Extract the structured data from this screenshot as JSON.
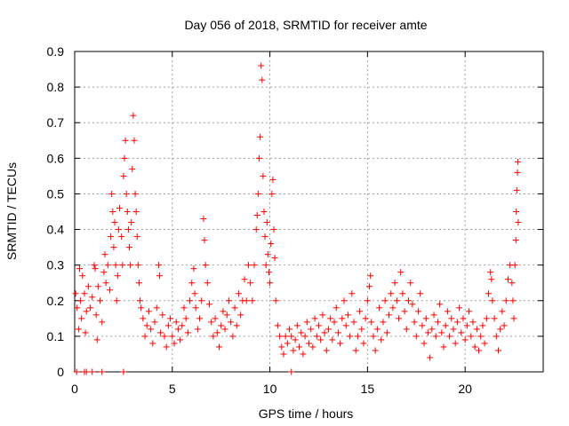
{
  "chart_data": {
    "type": "scatter",
    "title": "Day 056 of 2018, SRMTID for receiver amte",
    "xlabel": "GPS time / hours",
    "ylabel": "SRMTID / TECUs",
    "xlim": [
      0,
      24
    ],
    "ylim": [
      0,
      0.9
    ],
    "xticks": [
      0,
      5,
      10,
      15,
      20
    ],
    "xtick_labels": [
      "0",
      "5",
      "10",
      "15",
      "20"
    ],
    "yticks": [
      0,
      0.1,
      0.2,
      0.3,
      0.4,
      0.5,
      0.6,
      0.7,
      0.8,
      0.9
    ],
    "ytick_labels": [
      "0",
      "0.1",
      "0.2",
      "0.3",
      "0.4",
      "0.5",
      "0.6",
      "0.7",
      "0.8",
      "0.9"
    ],
    "grid": true,
    "marker": "+",
    "color": "#ff0000",
    "series": [
      {
        "name": "SRMTID",
        "points": [
          [
            0.05,
            0.22
          ],
          [
            0.12,
            0.18
          ],
          [
            0.2,
            0.12
          ],
          [
            0.25,
            0.29
          ],
          [
            0.3,
            0.2
          ],
          [
            0.35,
            0.15
          ],
          [
            0.4,
            0.27
          ],
          [
            0.5,
            0.22
          ],
          [
            0.55,
            0.11
          ],
          [
            0.6,
            0.17
          ],
          [
            0.7,
            0.24
          ],
          [
            0.8,
            0.18
          ],
          [
            0.9,
            0.21
          ],
          [
            1.0,
            0.3
          ],
          [
            1.05,
            0.29
          ],
          [
            1.1,
            0.16
          ],
          [
            1.15,
            0.09
          ],
          [
            1.2,
            0.24
          ],
          [
            1.3,
            0.2
          ],
          [
            1.4,
            0.14
          ],
          [
            1.5,
            0.28
          ],
          [
            1.55,
            0.33
          ],
          [
            1.6,
            0.25
          ],
          [
            1.7,
            0.3
          ],
          [
            1.8,
            0.23
          ],
          [
            1.85,
            0.38
          ],
          [
            1.9,
            0.5
          ],
          [
            1.95,
            0.45
          ],
          [
            2.0,
            0.35
          ],
          [
            2.05,
            0.42
          ],
          [
            2.1,
            0.3
          ],
          [
            2.15,
            0.2
          ],
          [
            2.2,
            0.27
          ],
          [
            2.25,
            0.4
          ],
          [
            2.3,
            0.46
          ],
          [
            2.4,
            0.38
          ],
          [
            2.45,
            0.3
          ],
          [
            2.5,
            0.55
          ],
          [
            2.55,
            0.6
          ],
          [
            2.6,
            0.65
          ],
          [
            2.65,
            0.5
          ],
          [
            2.7,
            0.45
          ],
          [
            2.75,
            0.4
          ],
          [
            2.8,
            0.35
          ],
          [
            2.85,
            0.3
          ],
          [
            2.9,
            0.42
          ],
          [
            2.95,
            0.57
          ],
          [
            3.0,
            0.72
          ],
          [
            3.05,
            0.65
          ],
          [
            3.1,
            0.5
          ],
          [
            3.15,
            0.45
          ],
          [
            3.2,
            0.38
          ],
          [
            3.25,
            0.3
          ],
          [
            3.3,
            0.25
          ],
          [
            3.35,
            0.2
          ],
          [
            3.4,
            0.18
          ],
          [
            3.5,
            0.15
          ],
          [
            3.6,
            0.1
          ],
          [
            3.7,
            0.13
          ],
          [
            3.8,
            0.17
          ],
          [
            3.9,
            0.12
          ],
          [
            4.0,
            0.08
          ],
          [
            4.1,
            0.14
          ],
          [
            4.2,
            0.18
          ],
          [
            4.3,
            0.3
          ],
          [
            4.35,
            0.27
          ],
          [
            4.4,
            0.11
          ],
          [
            4.5,
            0.16
          ],
          [
            4.6,
            0.1
          ],
          [
            4.7,
            0.07
          ],
          [
            4.8,
            0.13
          ],
          [
            4.9,
            0.15
          ],
          [
            5.0,
            0.1
          ],
          [
            5.1,
            0.08
          ],
          [
            5.2,
            0.14
          ],
          [
            5.3,
            0.12
          ],
          [
            5.4,
            0.09
          ],
          [
            5.5,
            0.13
          ],
          [
            5.6,
            0.18
          ],
          [
            5.7,
            0.15
          ],
          [
            5.8,
            0.11
          ],
          [
            5.9,
            0.2
          ],
          [
            6.0,
            0.25
          ],
          [
            6.1,
            0.29
          ],
          [
            6.15,
            0.22
          ],
          [
            6.2,
            0.18
          ],
          [
            6.3,
            0.12
          ],
          [
            6.4,
            0.15
          ],
          [
            6.5,
            0.2
          ],
          [
            6.6,
            0.43
          ],
          [
            6.65,
            0.37
          ],
          [
            6.7,
            0.3
          ],
          [
            6.8,
            0.25
          ],
          [
            6.9,
            0.19
          ],
          [
            7.0,
            0.14
          ],
          [
            7.1,
            0.1
          ],
          [
            7.2,
            0.15
          ],
          [
            7.3,
            0.11
          ],
          [
            7.4,
            0.07
          ],
          [
            7.5,
            0.13
          ],
          [
            7.6,
            0.17
          ],
          [
            7.7,
            0.12
          ],
          [
            7.8,
            0.16
          ],
          [
            7.9,
            0.2
          ],
          [
            8.0,
            0.14
          ],
          [
            8.1,
            0.1
          ],
          [
            8.2,
            0.18
          ],
          [
            8.3,
            0.13
          ],
          [
            8.4,
            0.22
          ],
          [
            8.5,
            0.16
          ],
          [
            8.6,
            0.2
          ],
          [
            8.7,
            0.26
          ],
          [
            8.8,
            0.2
          ],
          [
            8.9,
            0.3
          ],
          [
            9.0,
            0.25
          ],
          [
            9.1,
            0.2
          ],
          [
            9.2,
            0.3
          ],
          [
            9.3,
            0.4
          ],
          [
            9.35,
            0.44
          ],
          [
            9.4,
            0.5
          ],
          [
            9.45,
            0.6
          ],
          [
            9.5,
            0.66
          ],
          [
            9.55,
            0.86
          ],
          [
            9.6,
            0.82
          ],
          [
            9.65,
            0.55
          ],
          [
            9.7,
            0.45
          ],
          [
            9.75,
            0.38
          ],
          [
            9.8,
            0.3
          ],
          [
            9.85,
            0.42
          ],
          [
            9.9,
            0.33
          ],
          [
            9.95,
            0.28
          ],
          [
            10.0,
            0.25
          ],
          [
            10.05,
            0.36
          ],
          [
            10.1,
            0.5
          ],
          [
            10.15,
            0.54
          ],
          [
            10.2,
            0.4
          ],
          [
            10.25,
            0.32
          ],
          [
            10.3,
            0.2
          ],
          [
            10.4,
            0.13
          ],
          [
            10.5,
            0.1
          ],
          [
            10.6,
            0.07
          ],
          [
            10.7,
            0.05
          ],
          [
            10.8,
            0.1
          ],
          [
            10.9,
            0.08
          ],
          [
            11.0,
            0.12
          ],
          [
            11.1,
            0.1
          ],
          [
            11.2,
            0.06
          ],
          [
            11.3,
            0.09
          ],
          [
            11.4,
            0.13
          ],
          [
            11.5,
            0.07
          ],
          [
            11.6,
            0.11
          ],
          [
            11.7,
            0.05
          ],
          [
            11.8,
            0.1
          ],
          [
            11.9,
            0.14
          ],
          [
            12.0,
            0.08
          ],
          [
            12.1,
            0.12
          ],
          [
            12.2,
            0.07
          ],
          [
            12.3,
            0.15
          ],
          [
            12.4,
            0.1
          ],
          [
            12.5,
            0.13
          ],
          [
            12.6,
            0.09
          ],
          [
            12.7,
            0.16
          ],
          [
            12.8,
            0.11
          ],
          [
            12.9,
            0.06
          ],
          [
            13.0,
            0.12
          ],
          [
            13.1,
            0.15
          ],
          [
            13.2,
            0.09
          ],
          [
            13.3,
            0.14
          ],
          [
            13.4,
            0.18
          ],
          [
            13.5,
            0.11
          ],
          [
            13.6,
            0.08
          ],
          [
            13.7,
            0.15
          ],
          [
            13.8,
            0.2
          ],
          [
            13.9,
            0.13
          ],
          [
            14.0,
            0.16
          ],
          [
            14.1,
            0.1
          ],
          [
            14.2,
            0.22
          ],
          [
            14.3,
            0.14
          ],
          [
            14.4,
            0.06
          ],
          [
            14.5,
            0.1
          ],
          [
            14.6,
            0.17
          ],
          [
            14.7,
            0.12
          ],
          [
            14.8,
            0.08
          ],
          [
            14.9,
            0.15
          ],
          [
            15.0,
            0.2
          ],
          [
            15.1,
            0.24
          ],
          [
            15.15,
            0.27
          ],
          [
            15.2,
            0.14
          ],
          [
            15.3,
            0.1
          ],
          [
            15.4,
            0.06
          ],
          [
            15.5,
            0.12
          ],
          [
            15.6,
            0.18
          ],
          [
            15.7,
            0.09
          ],
          [
            15.8,
            0.14
          ],
          [
            15.9,
            0.2
          ],
          [
            16.0,
            0.11
          ],
          [
            16.1,
            0.16
          ],
          [
            16.2,
            0.22
          ],
          [
            16.3,
            0.18
          ],
          [
            16.4,
            0.25
          ],
          [
            16.5,
            0.2
          ],
          [
            16.6,
            0.15
          ],
          [
            16.7,
            0.28
          ],
          [
            16.8,
            0.22
          ],
          [
            16.9,
            0.17
          ],
          [
            17.0,
            0.12
          ],
          [
            17.1,
            0.2
          ],
          [
            17.2,
            0.25
          ],
          [
            17.3,
            0.19
          ],
          [
            17.4,
            0.14
          ],
          [
            17.5,
            0.1
          ],
          [
            17.6,
            0.17
          ],
          [
            17.7,
            0.22
          ],
          [
            17.8,
            0.13
          ],
          [
            17.9,
            0.08
          ],
          [
            18.0,
            0.15
          ],
          [
            18.1,
            0.11
          ],
          [
            18.2,
            0.04
          ],
          [
            18.3,
            0.12
          ],
          [
            18.4,
            0.16
          ],
          [
            18.5,
            0.1
          ],
          [
            18.6,
            0.14
          ],
          [
            18.7,
            0.19
          ],
          [
            18.8,
            0.11
          ],
          [
            18.9,
            0.07
          ],
          [
            19.0,
            0.13
          ],
          [
            19.1,
            0.17
          ],
          [
            19.2,
            0.1
          ],
          [
            19.3,
            0.15
          ],
          [
            19.4,
            0.12
          ],
          [
            19.5,
            0.08
          ],
          [
            19.6,
            0.14
          ],
          [
            19.7,
            0.18
          ],
          [
            19.8,
            0.11
          ],
          [
            19.9,
            0.15
          ],
          [
            20.0,
            0.09
          ],
          [
            20.1,
            0.13
          ],
          [
            20.2,
            0.17
          ],
          [
            20.3,
            0.1
          ],
          [
            20.4,
            0.14
          ],
          [
            20.5,
            0.07
          ],
          [
            20.6,
            0.12
          ],
          [
            20.7,
            0.06
          ],
          [
            20.8,
            0.1
          ],
          [
            20.9,
            0.13
          ],
          [
            21.0,
            0.08
          ],
          [
            21.1,
            0.15
          ],
          [
            21.2,
            0.22
          ],
          [
            21.3,
            0.28
          ],
          [
            21.35,
            0.26
          ],
          [
            21.4,
            0.2
          ],
          [
            21.5,
            0.15
          ],
          [
            21.6,
            0.1
          ],
          [
            21.7,
            0.06
          ],
          [
            21.8,
            0.12
          ],
          [
            21.9,
            0.17
          ],
          [
            22.0,
            0.13
          ],
          [
            22.1,
            0.2
          ],
          [
            22.2,
            0.26
          ],
          [
            22.3,
            0.3
          ],
          [
            22.4,
            0.25
          ],
          [
            22.45,
            0.2
          ],
          [
            22.5,
            0.15
          ],
          [
            22.55,
            0.3
          ],
          [
            22.6,
            0.37
          ],
          [
            22.62,
            0.45
          ],
          [
            22.65,
            0.51
          ],
          [
            22.68,
            0.56
          ],
          [
            22.7,
            0.59
          ],
          [
            22.72,
            0.42
          ],
          [
            0.1,
            0.0
          ],
          [
            0.5,
            0.0
          ],
          [
            0.6,
            0.0
          ],
          [
            0.9,
            0.0
          ],
          [
            1.4,
            0.0
          ],
          [
            2.5,
            0.0
          ],
          [
            11.1,
            0.0
          ]
        ]
      }
    ]
  }
}
